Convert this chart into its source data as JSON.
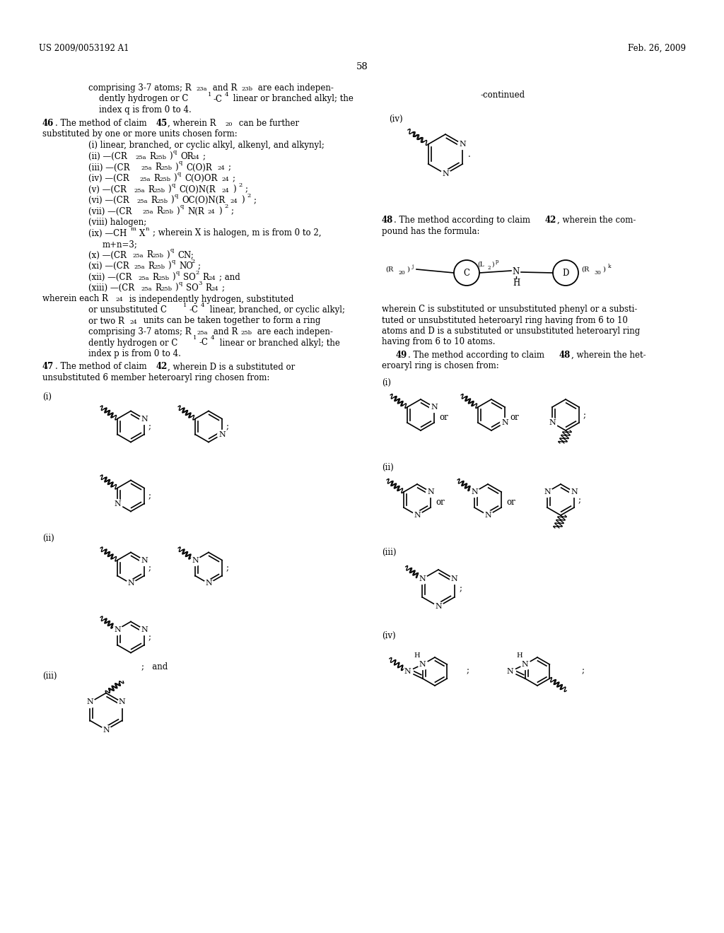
{
  "page_width": 10.24,
  "page_height": 13.2,
  "bg_color": "#ffffff",
  "header_left": "US 2009/0053192 A1",
  "header_right": "Feb. 26, 2009",
  "page_number": "58"
}
